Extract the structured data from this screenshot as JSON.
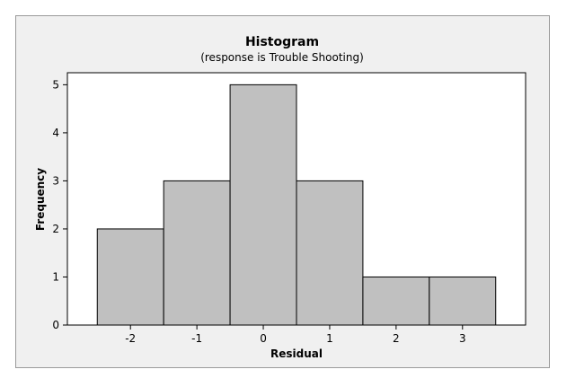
{
  "chart_data": {
    "type": "bar",
    "title": "Histogram",
    "subtitle": "(response is Trouble Shooting)",
    "xlabel": "Residual",
    "ylabel": "Frequency",
    "categories": [
      "-2",
      "-1",
      "0",
      "1",
      "2",
      "3"
    ],
    "bin_centers": [
      -2,
      -1,
      0,
      1,
      2,
      3
    ],
    "bin_width": 1,
    "values": [
      2,
      3,
      5,
      3,
      1,
      1
    ],
    "xlim": [
      -2.95,
      3.95
    ],
    "ylim": [
      0,
      5.25
    ],
    "yticks": [
      "0",
      "1",
      "2",
      "3",
      "4",
      "5"
    ],
    "grid": false,
    "legend": "none",
    "bar_color": "#c0c0c0",
    "bar_edge_color": "#000000",
    "panel_color": "#f0f0f0",
    "plot_bg_color": "#ffffff"
  }
}
